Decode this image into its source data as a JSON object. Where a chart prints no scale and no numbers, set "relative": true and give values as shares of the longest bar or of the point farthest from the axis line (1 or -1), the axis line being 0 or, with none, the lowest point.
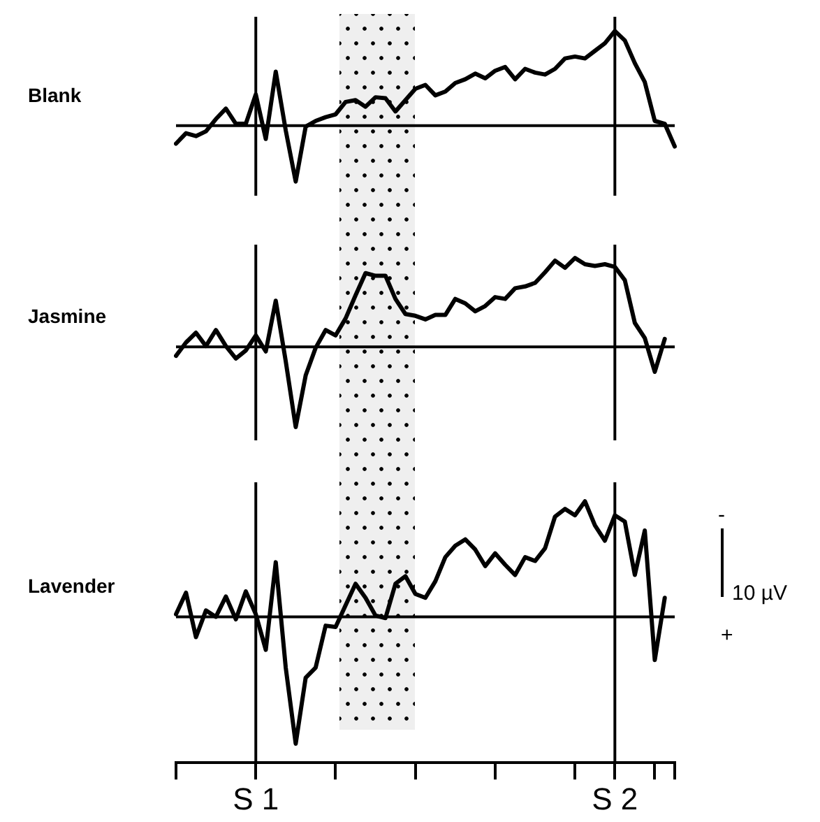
{
  "chart_data": [
    {
      "type": "line",
      "relative": true,
      "marker": "none",
      "legend": false,
      "tick_labels": false,
      "categories": [
        null,
        null,
        null,
        null,
        null,
        null,
        null,
        null,
        "S 1",
        null,
        null,
        null,
        null,
        null,
        null,
        null,
        null,
        null,
        null,
        null,
        null,
        null,
        null,
        null,
        null,
        null,
        null,
        null,
        null,
        null,
        null,
        null,
        null,
        null,
        null,
        null,
        null,
        null,
        null,
        null,
        null,
        null,
        null,
        null,
        "S 2",
        null,
        null,
        null,
        null,
        null,
        null
      ],
      "series": [
        {
          "name": "Blank",
          "color": "#000000",
          "values": [
            -0.19,
            -0.08,
            -0.11,
            -0.06,
            0.07,
            0.18,
            0.02,
            0.02,
            0.33,
            -0.14,
            0.57,
            -0.05,
            -0.59,
            -0.01,
            0.05,
            0.09,
            0.12,
            0.25,
            0.27,
            0.2,
            0.3,
            0.29,
            0.15,
            0.27,
            0.39,
            0.43,
            0.32,
            0.36,
            0.45,
            0.49,
            0.55,
            0.5,
            0.58,
            0.62,
            0.49,
            0.6,
            0.56,
            0.54,
            0.6,
            0.71,
            0.73,
            0.71,
            0.79,
            0.87,
            1,
            0.9,
            0.66,
            0.46,
            0.05,
            0.02,
            -0.22
          ]
        }
      ],
      "ref_lines": [
        {
          "axis": "x",
          "value": "S 1"
        },
        {
          "axis": "x",
          "value": "S 2"
        }
      ]
    },
    {
      "type": "line",
      "relative": true,
      "marker": "none",
      "legend": false,
      "tick_labels": false,
      "categories": [
        null,
        null,
        null,
        null,
        null,
        null,
        null,
        null,
        "S 1",
        null,
        null,
        null,
        null,
        null,
        null,
        null,
        null,
        null,
        null,
        null,
        null,
        null,
        null,
        null,
        null,
        null,
        null,
        null,
        null,
        null,
        null,
        null,
        null,
        null,
        null,
        null,
        null,
        null,
        null,
        null,
        null,
        null,
        null,
        null,
        "S 2",
        null,
        null,
        null,
        null,
        null,
        null
      ],
      "series": [
        {
          "name": "Jasmine",
          "color": "#000000",
          "values": [
            -0.1,
            0.05,
            0.16,
            0.01,
            0.19,
            0.01,
            -0.13,
            -0.04,
            0.13,
            -0.05,
            0.52,
            -0.16,
            -0.9,
            -0.32,
            -0.01,
            0.19,
            0.13,
            0.32,
            0.58,
            0.83,
            0.8,
            0.8,
            0.54,
            0.37,
            0.35,
            0.31,
            0.36,
            0.36,
            0.54,
            0.49,
            0.4,
            0.46,
            0.56,
            0.54,
            0.66,
            0.68,
            0.72,
            0.84,
            0.97,
            0.89,
            1,
            0.93,
            0.91,
            0.93,
            0.9,
            0.75,
            0.27,
            0.1,
            -0.28,
            0.09,
            null
          ]
        }
      ],
      "ref_lines": [
        {
          "axis": "x",
          "value": "S 1"
        },
        {
          "axis": "x",
          "value": "S 2"
        }
      ]
    },
    {
      "type": "line",
      "relative": true,
      "marker": "none",
      "legend": false,
      "tick_labels": "x",
      "categories": [
        null,
        null,
        null,
        null,
        null,
        null,
        null,
        null,
        "S 1",
        null,
        null,
        null,
        null,
        null,
        null,
        null,
        null,
        null,
        null,
        null,
        null,
        null,
        null,
        null,
        null,
        null,
        null,
        null,
        null,
        null,
        null,
        null,
        null,
        null,
        null,
        null,
        null,
        null,
        null,
        null,
        null,
        null,
        null,
        null,
        "S 2",
        null,
        null,
        null,
        null,
        null,
        null
      ],
      "series": [
        {
          "name": "Lavender",
          "color": "#000000",
          "values": [
            0.02,
            0.19,
            -0.16,
            0.05,
            0,
            0.16,
            -0.02,
            0.2,
            0.02,
            -0.26,
            0.43,
            -0.4,
            -1,
            -0.48,
            -0.4,
            -0.07,
            -0.08,
            0.09,
            0.26,
            0.15,
            0.01,
            -0.01,
            0.26,
            0.32,
            0.18,
            0.15,
            0.28,
            0.47,
            0.56,
            0.61,
            0.53,
            0.4,
            0.5,
            0.41,
            0.33,
            0.47,
            0.44,
            0.54,
            0.79,
            0.85,
            0.8,
            0.91,
            0.72,
            0.6,
            0.8,
            0.75,
            0.33,
            0.68,
            -0.34,
            0.15,
            null
          ]
        }
      ],
      "ref_lines": [
        {
          "axis": "x",
          "value": "S 1"
        },
        {
          "axis": "x",
          "value": "S 2"
        }
      ],
      "annotations": [
        "-",
        "10 µV",
        "+"
      ]
    }
  ]
}
